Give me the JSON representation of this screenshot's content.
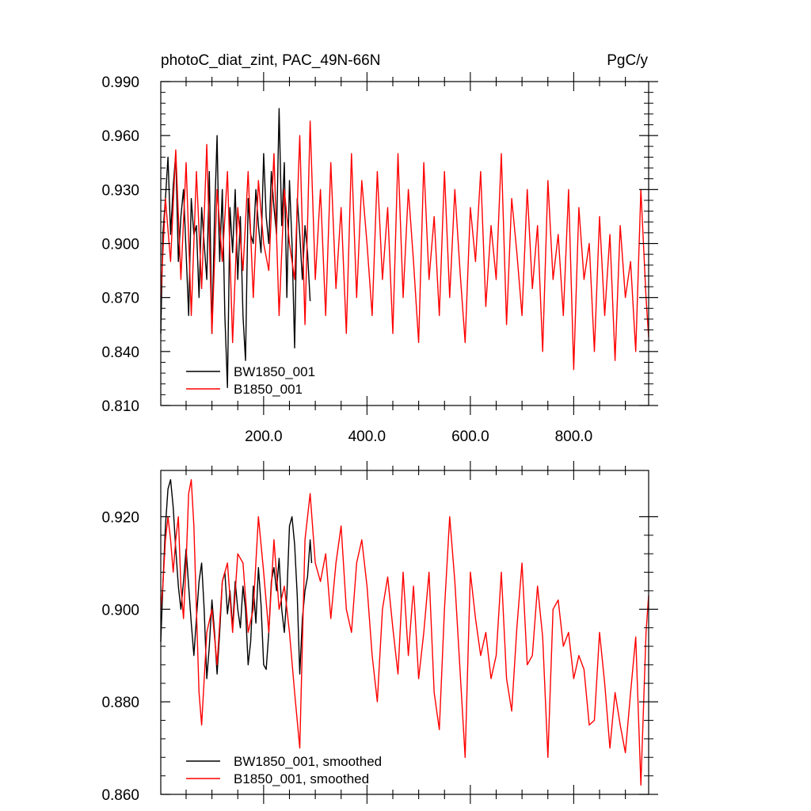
{
  "colors": {
    "series_black": "#000000",
    "series_red": "#ff0000",
    "axis": "#000000",
    "background": "#ffffff"
  },
  "chart_data": [
    {
      "type": "line",
      "title_left": "photoC_diat_zint, PAC_49N-66N",
      "title_right": "PgC/y",
      "xlabel": "",
      "ylabel": "",
      "xlim": [
        1,
        945
      ],
      "ylim": [
        0.81,
        0.99
      ],
      "x_ticks": [
        200,
        400,
        600,
        800
      ],
      "x_tick_labels": [
        "200.0",
        "400.0",
        "600.0",
        "800.0"
      ],
      "y_ticks": [
        0.81,
        0.84,
        0.87,
        0.9,
        0.93,
        0.96,
        0.99
      ],
      "y_tick_labels": [
        "0.810",
        "0.840",
        "0.870",
        "0.900",
        "0.930",
        "0.960",
        "0.990"
      ],
      "grid": false,
      "legend_position": "bottom-left",
      "series": [
        {
          "name": "BW1850_001",
          "color": "#000000",
          "x": [
            1,
            5,
            10,
            15,
            20,
            25,
            30,
            35,
            40,
            45,
            50,
            55,
            60,
            65,
            70,
            75,
            80,
            85,
            90,
            95,
            100,
            105,
            110,
            113,
            115,
            120,
            125,
            130,
            135,
            140,
            145,
            150,
            155,
            160,
            165,
            170,
            175,
            180,
            185,
            190,
            195,
            200,
            205,
            210,
            215,
            220,
            225,
            230,
            235,
            240,
            245,
            250,
            255,
            260,
            265,
            270,
            275,
            280,
            285,
            290
          ],
          "values": [
            0.85,
            0.905,
            0.925,
            0.948,
            0.905,
            0.932,
            0.95,
            0.89,
            0.915,
            0.93,
            0.895,
            0.86,
            0.925,
            0.905,
            0.91,
            0.87,
            0.92,
            0.9,
            0.88,
            0.94,
            0.85,
            0.915,
            0.96,
            0.912,
            0.89,
            0.93,
            0.86,
            0.82,
            0.92,
            0.895,
            0.93,
            0.88,
            0.915,
            0.86,
            0.835,
            0.925,
            0.905,
            0.9,
            0.93,
            0.91,
            0.895,
            0.95,
            0.915,
            0.9,
            0.94,
            0.92,
            0.905,
            0.975,
            0.91,
            0.945,
            0.87,
            0.935,
            0.9,
            0.842,
            0.925,
            0.905,
            0.88,
            0.91,
            0.895,
            0.868
          ]
        },
        {
          "name": "B1850_001",
          "color": "#ff0000",
          "x": [
            1,
            10,
            20,
            30,
            40,
            50,
            60,
            70,
            80,
            90,
            100,
            110,
            120,
            130,
            140,
            150,
            160,
            170,
            180,
            190,
            200,
            210,
            220,
            230,
            240,
            250,
            260,
            270,
            280,
            290,
            300,
            310,
            320,
            330,
            340,
            350,
            360,
            370,
            380,
            390,
            400,
            410,
            420,
            430,
            440,
            450,
            460,
            470,
            480,
            490,
            500,
            510,
            520,
            530,
            540,
            550,
            560,
            570,
            580,
            590,
            600,
            610,
            620,
            630,
            640,
            650,
            660,
            670,
            680,
            690,
            700,
            710,
            720,
            730,
            740,
            750,
            760,
            770,
            780,
            790,
            800,
            810,
            820,
            830,
            840,
            850,
            860,
            870,
            880,
            890,
            900,
            910,
            920,
            930,
            940,
            945
          ],
          "values": [
            0.87,
            0.925,
            0.89,
            0.952,
            0.88,
            0.945,
            0.86,
            0.94,
            0.875,
            0.955,
            0.85,
            0.93,
            0.89,
            0.94,
            0.845,
            0.92,
            0.885,
            0.94,
            0.87,
            0.935,
            0.9,
            0.885,
            0.95,
            0.86,
            0.93,
            0.9,
            0.88,
            0.96,
            0.855,
            0.968,
            0.88,
            0.93,
            0.86,
            0.945,
            0.875,
            0.92,
            0.85,
            0.95,
            0.87,
            0.935,
            0.9,
            0.86,
            0.94,
            0.88,
            0.92,
            0.85,
            0.95,
            0.87,
            0.93,
            0.89,
            0.845,
            0.945,
            0.88,
            0.915,
            0.86,
            0.94,
            0.87,
            0.93,
            0.885,
            0.845,
            0.92,
            0.89,
            0.94,
            0.865,
            0.91,
            0.88,
            0.95,
            0.855,
            0.925,
            0.895,
            0.86,
            0.93,
            0.875,
            0.91,
            0.84,
            0.935,
            0.88,
            0.905,
            0.86,
            0.93,
            0.83,
            0.92,
            0.88,
            0.9,
            0.84,
            0.915,
            0.86,
            0.905,
            0.835,
            0.91,
            0.87,
            0.89,
            0.84,
            0.93,
            0.87,
            0.848
          ]
        }
      ]
    },
    {
      "type": "line",
      "title_left": "",
      "title_right": "",
      "xlabel": "",
      "ylabel": "",
      "xlim": [
        1,
        945
      ],
      "ylim": [
        0.86,
        0.93
      ],
      "x_ticks": [
        200,
        400,
        600,
        800
      ],
      "x_tick_labels": [
        "",
        "",
        "",
        ""
      ],
      "y_ticks": [
        0.86,
        0.88,
        0.9,
        0.92
      ],
      "y_tick_labels": [
        "0.860",
        "0.880",
        "0.900",
        "0.920"
      ],
      "grid": false,
      "legend_position": "bottom-left",
      "series": [
        {
          "name": "BW1850_001, smoothed",
          "color": "#000000",
          "x": [
            1,
            5,
            10,
            15,
            20,
            25,
            30,
            35,
            40,
            45,
            50,
            55,
            60,
            65,
            70,
            75,
            80,
            85,
            90,
            95,
            100,
            105,
            110,
            115,
            120,
            125,
            130,
            135,
            140,
            145,
            150,
            155,
            160,
            165,
            170,
            175,
            180,
            185,
            190,
            195,
            200,
            205,
            210,
            215,
            220,
            225,
            230,
            235,
            240,
            245,
            250,
            255,
            260,
            265,
            270,
            275,
            280,
            285,
            290,
            293
          ],
          "values": [
            0.893,
            0.905,
            0.918,
            0.926,
            0.928,
            0.922,
            0.913,
            0.905,
            0.9,
            0.906,
            0.913,
            0.905,
            0.897,
            0.89,
            0.898,
            0.906,
            0.91,
            0.9,
            0.885,
            0.892,
            0.902,
            0.895,
            0.886,
            0.895,
            0.906,
            0.908,
            0.899,
            0.904,
            0.896,
            0.906,
            0.9,
            0.896,
            0.905,
            0.9,
            0.888,
            0.893,
            0.905,
            0.897,
            0.909,
            0.901,
            0.888,
            0.887,
            0.895,
            0.906,
            0.909,
            0.904,
            0.911,
            0.9,
            0.895,
            0.903,
            0.918,
            0.92,
            0.914,
            0.903,
            0.886,
            0.898,
            0.904,
            0.907,
            0.915,
            0.91
          ]
        },
        {
          "name": "B1850_001, smoothed",
          "color": "#ff0000",
          "x": [
            1,
            5,
            10,
            15,
            20,
            25,
            30,
            35,
            40,
            45,
            50,
            55,
            60,
            65,
            70,
            75,
            80,
            90,
            100,
            110,
            120,
            130,
            140,
            150,
            160,
            170,
            180,
            190,
            200,
            210,
            220,
            230,
            240,
            250,
            260,
            270,
            280,
            290,
            300,
            310,
            320,
            330,
            340,
            350,
            360,
            370,
            380,
            390,
            400,
            410,
            420,
            430,
            440,
            450,
            460,
            470,
            480,
            490,
            500,
            510,
            520,
            530,
            540,
            550,
            560,
            570,
            580,
            590,
            600,
            610,
            620,
            630,
            640,
            650,
            660,
            670,
            680,
            690,
            700,
            710,
            720,
            730,
            740,
            750,
            760,
            770,
            780,
            790,
            800,
            810,
            820,
            830,
            840,
            850,
            860,
            870,
            880,
            890,
            900,
            910,
            920,
            930,
            940,
            945
          ],
          "values": [
            0.9,
            0.905,
            0.915,
            0.92,
            0.915,
            0.908,
            0.915,
            0.92,
            0.905,
            0.898,
            0.91,
            0.925,
            0.928,
            0.918,
            0.9,
            0.882,
            0.875,
            0.895,
            0.9,
            0.888,
            0.906,
            0.91,
            0.895,
            0.912,
            0.91,
            0.895,
            0.9,
            0.92,
            0.908,
            0.895,
            0.915,
            0.9,
            0.905,
            0.895,
            0.882,
            0.87,
            0.915,
            0.925,
            0.91,
            0.906,
            0.912,
            0.898,
            0.91,
            0.918,
            0.9,
            0.895,
            0.91,
            0.915,
            0.905,
            0.89,
            0.88,
            0.9,
            0.907,
            0.896,
            0.886,
            0.908,
            0.89,
            0.905,
            0.885,
            0.895,
            0.908,
            0.882,
            0.874,
            0.9,
            0.92,
            0.906,
            0.887,
            0.868,
            0.908,
            0.898,
            0.89,
            0.895,
            0.885,
            0.89,
            0.908,
            0.885,
            0.878,
            0.896,
            0.91,
            0.888,
            0.89,
            0.905,
            0.894,
            0.868,
            0.9,
            0.902,
            0.892,
            0.895,
            0.885,
            0.89,
            0.887,
            0.875,
            0.876,
            0.895,
            0.884,
            0.87,
            0.882,
            0.875,
            0.869,
            0.882,
            0.894,
            0.862,
            0.895,
            0.903
          ]
        }
      ]
    }
  ]
}
